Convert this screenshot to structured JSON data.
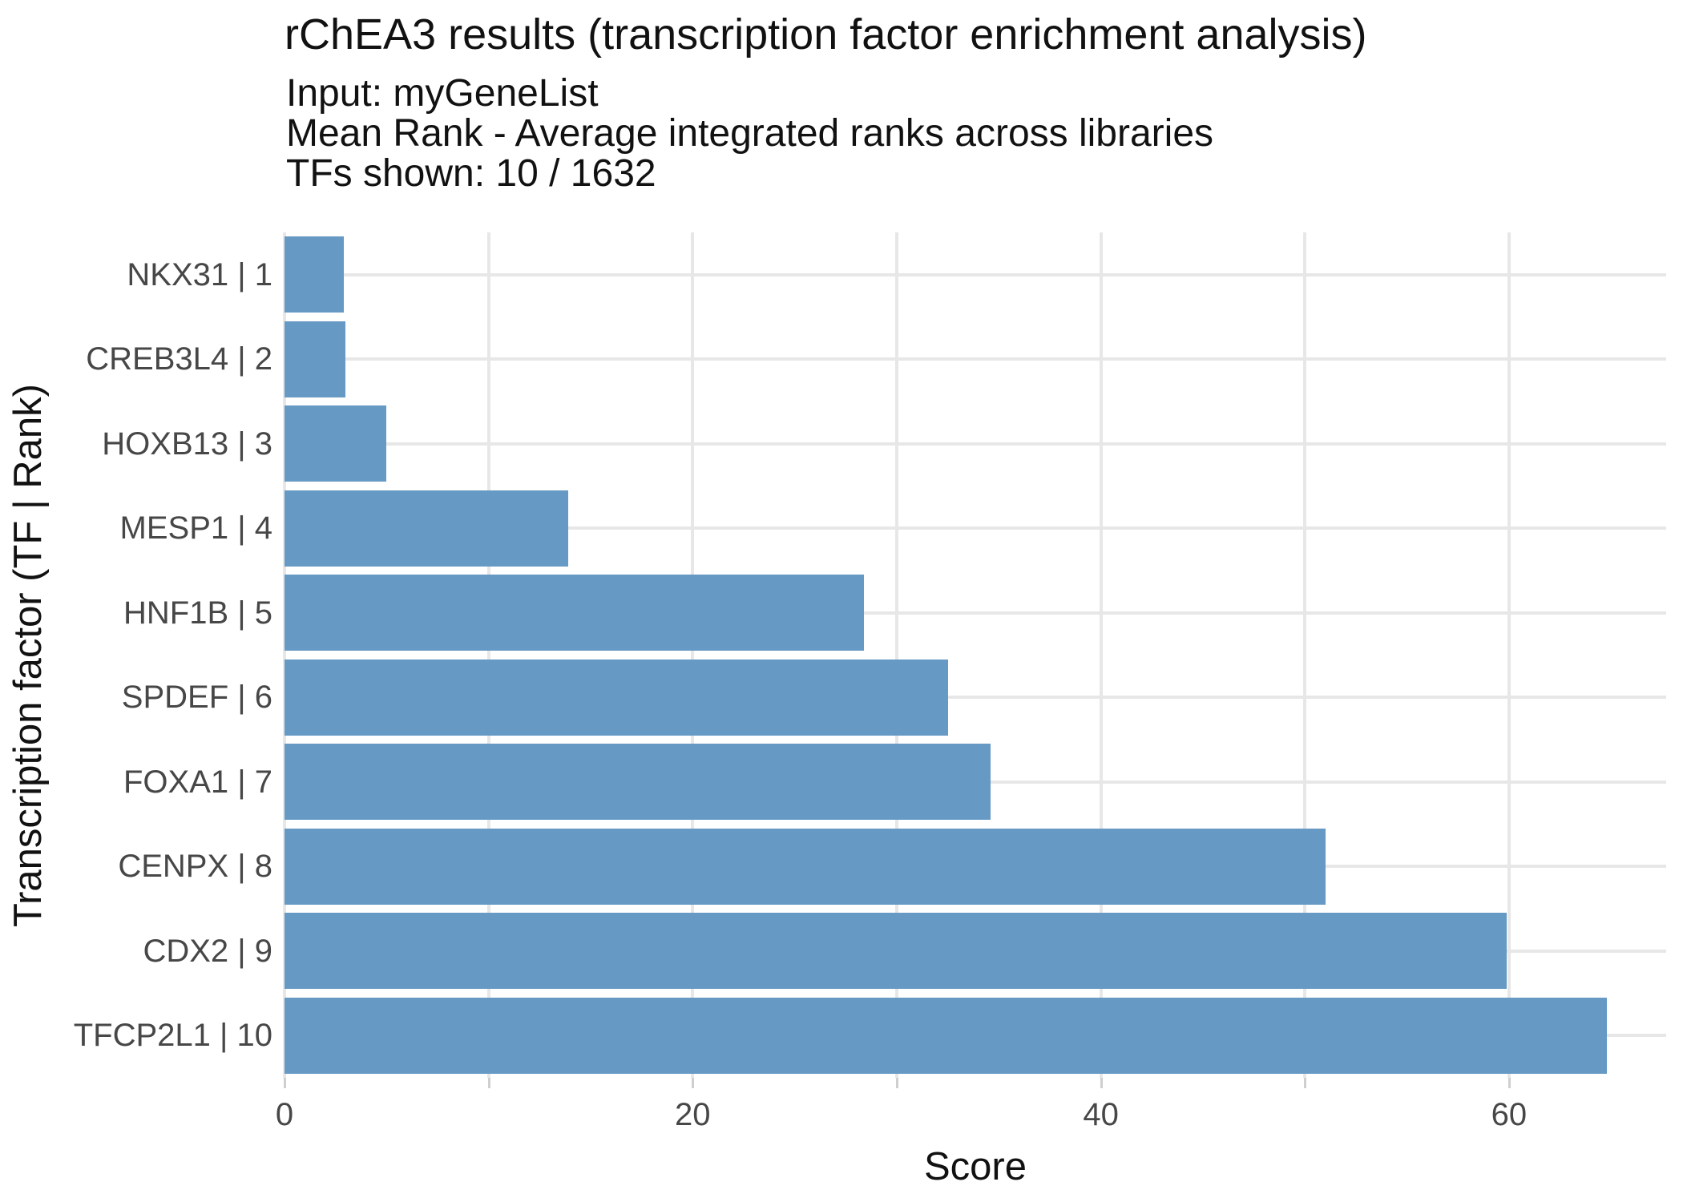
{
  "header": {
    "title": "rChEA3 results (transcription factor enrichment analysis)",
    "subtitle_lines": [
      "Input: myGeneList",
      "Mean Rank - Average integrated ranks across libraries",
      "TFs shown: 10 / 1632"
    ]
  },
  "chart_data": {
    "type": "bar",
    "orientation": "horizontal",
    "title": "rChEA3 results (transcription factor enrichment analysis)",
    "subtitle": "Input: myGeneList | Mean Rank - Average integrated ranks across libraries | TFs shown: 10 / 1632",
    "categories": [
      "NKX31 | 1",
      "CREB3L4 | 2",
      "HOXB13 | 3",
      "MESP1 | 4",
      "HNF1B | 5",
      "SPDEF | 6",
      "FOXA1 | 7",
      "CENPX | 8",
      "CDX2 | 9",
      "TFCP2L1 | 10"
    ],
    "values": [
      2.9,
      3.0,
      5.0,
      13.9,
      28.4,
      32.5,
      34.6,
      51.0,
      59.9,
      64.8
    ],
    "xlabel": "Score",
    "ylabel": "Transcription factor (TF | Rank)",
    "xlim": [
      0,
      67.7
    ],
    "x_gridlines": [
      0,
      10,
      20,
      30,
      40,
      50,
      60
    ],
    "x_labeled_ticks": [
      0,
      20,
      40,
      60
    ],
    "grid": true,
    "legend_position": "none",
    "colors": {
      "bar": "#6699c4",
      "grid": "#e7e7e7",
      "tick": "#cfcfcf",
      "axis_text": "#474747",
      "title_text": "#111111",
      "background": "#ffffff"
    }
  }
}
